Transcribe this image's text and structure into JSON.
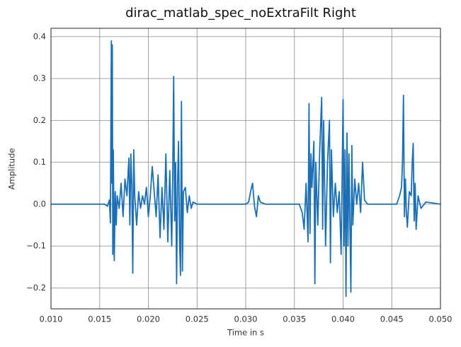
{
  "chart_data": {
    "type": "line",
    "title": "dirac_matlab_spec_noExtraFilt Right",
    "xlabel": "Time in s",
    "ylabel": "Amplitude",
    "xlim": [
      0.01,
      0.05
    ],
    "xticks": [
      {
        "value": 0.01,
        "label": "0.010"
      },
      {
        "value": 0.015,
        "label": "0.015"
      },
      {
        "value": 0.02,
        "label": "0.020"
      },
      {
        "value": 0.025,
        "label": "0.025"
      },
      {
        "value": 0.03,
        "label": "0.030"
      },
      {
        "value": 0.035,
        "label": "0.035"
      },
      {
        "value": 0.04,
        "label": "0.040"
      },
      {
        "value": 0.045,
        "label": "0.045"
      },
      {
        "value": 0.05,
        "label": "0.050"
      }
    ],
    "ylim": [
      -0.25,
      0.42
    ],
    "yticks": [
      {
        "value": -0.2,
        "label": "−0.2"
      },
      {
        "value": -0.1,
        "label": "−0.1"
      },
      {
        "value": 0,
        "label": "0.0"
      },
      0.1,
      0.2,
      0.3,
      0.4
    ],
    "grid": true,
    "color": "#1a6fb5",
    "x": [
      0.01,
      0.0155,
      0.0158,
      0.016,
      0.0161,
      0.0162,
      0.01625,
      0.0163,
      0.01635,
      0.0164,
      0.0165,
      0.0166,
      0.0167,
      0.0168,
      0.017,
      0.0172,
      0.0174,
      0.0176,
      0.0178,
      0.018,
      0.0181,
      0.0182,
      0.0183,
      0.0184,
      0.0185,
      0.0186,
      0.0188,
      0.019,
      0.0192,
      0.0194,
      0.0196,
      0.0198,
      0.02,
      0.0202,
      0.0204,
      0.0206,
      0.0208,
      0.021,
      0.0212,
      0.0214,
      0.0216,
      0.0218,
      0.022,
      0.0222,
      0.0224,
      0.0225,
      0.0226,
      0.0227,
      0.0228,
      0.0229,
      0.023,
      0.0231,
      0.0232,
      0.0233,
      0.0234,
      0.0235,
      0.0236,
      0.0238,
      0.024,
      0.0242,
      0.0244,
      0.0246,
      0.025,
      0.03,
      0.0303,
      0.0305,
      0.0307,
      0.0309,
      0.0311,
      0.0313,
      0.0315,
      0.032,
      0.0355,
      0.0358,
      0.036,
      0.0362,
      0.0364,
      0.0365,
      0.0366,
      0.0367,
      0.0368,
      0.037,
      0.0371,
      0.0372,
      0.0374,
      0.0376,
      0.0378,
      0.0379,
      0.038,
      0.0382,
      0.0384,
      0.0386,
      0.0387,
      0.0388,
      0.039,
      0.0392,
      0.0394,
      0.0396,
      0.0398,
      0.04,
      0.0401,
      0.0402,
      0.0403,
      0.0404,
      0.0405,
      0.0406,
      0.0408,
      0.0409,
      0.041,
      0.0412,
      0.0414,
      0.0416,
      0.0418,
      0.042,
      0.0422,
      0.0425,
      0.044,
      0.0455,
      0.0458,
      0.046,
      0.0461,
      0.0462,
      0.0463,
      0.0464,
      0.0465,
      0.0466,
      0.0468,
      0.047,
      0.0471,
      0.0472,
      0.0473,
      0.0474,
      0.0475,
      0.0477,
      0.048,
      0.0485,
      0.05
    ],
    "values": [
      0,
      0,
      -0.005,
      0.01,
      -0.045,
      0.39,
      0.05,
      0.38,
      -0.12,
      0.13,
      -0.135,
      0.03,
      -0.05,
      0.02,
      -0.01,
      0.05,
      -0.03,
      0.06,
      0.02,
      0.11,
      -0.05,
      0.12,
      0.05,
      -0.165,
      0.13,
      0.02,
      -0.05,
      0.03,
      -0.01,
      0.02,
      0,
      0.04,
      -0.03,
      0.02,
      0.09,
      0.03,
      -0.03,
      0.07,
      -0.08,
      0.04,
      -0.06,
      0.12,
      -0.09,
      0.08,
      -0.1,
      0.06,
      0.305,
      -0.04,
      0.1,
      -0.19,
      0.05,
      0.15,
      -0.08,
      -0.17,
      0.245,
      -0.16,
      0.03,
      0.04,
      -0.02,
      0.02,
      -0.01,
      0.005,
      0,
      0,
      0.005,
      0.03,
      0.05,
      -0.005,
      -0.03,
      0.02,
      0.005,
      0,
      0,
      -0.02,
      -0.06,
      0.05,
      -0.09,
      0.24,
      -0.07,
      0.12,
      0.04,
      0.15,
      -0.19,
      0.1,
      -0.05,
      0.13,
      0.255,
      -0.06,
      0.2,
      -0.1,
      0.1,
      0.2,
      -0.14,
      0.13,
      -0.03,
      0.05,
      -0.02,
      0.03,
      -0.12,
      0.25,
      -0.1,
      0.13,
      -0.22,
      0.17,
      -0.1,
      0.12,
      -0.21,
      0.14,
      -0.05,
      0.06,
      0,
      0.05,
      -0.02,
      0.1,
      0.01,
      0,
      0,
      0,
      0.02,
      0.04,
      0.1,
      0.26,
      -0.03,
      0.06,
      -0.02,
      -0.055,
      0.03,
      0.02,
      0.1,
      0.145,
      -0.04,
      0.05,
      -0.06,
      0.02,
      -0.01,
      0.005,
      0
    ]
  }
}
